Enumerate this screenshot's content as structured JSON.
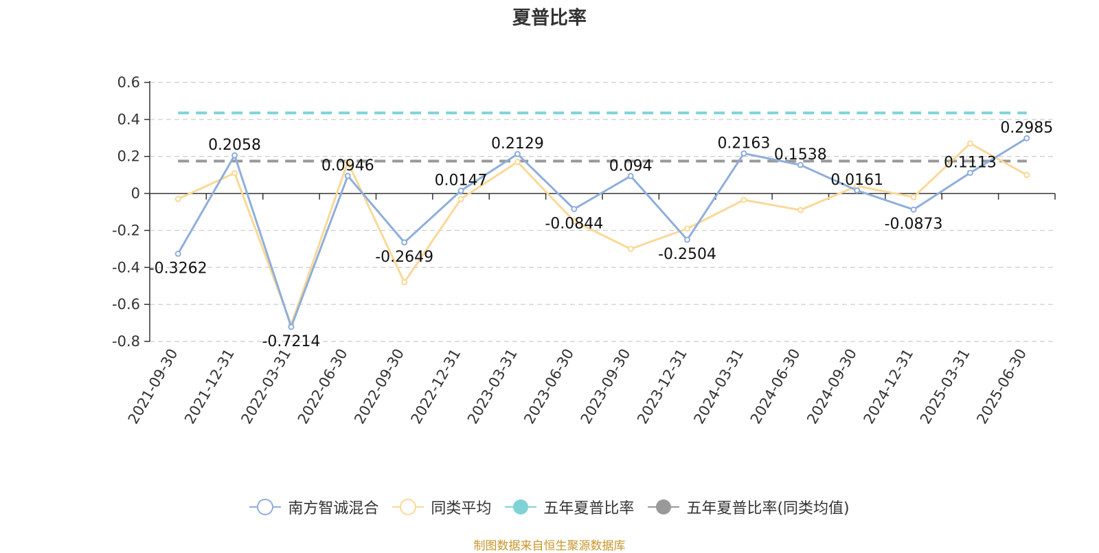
{
  "chart_data": {
    "type": "line",
    "title": "夏普比率",
    "source": "制图数据来自恒生聚源数据库",
    "categories": [
      "2021-09-30",
      "2021-12-31",
      "2022-03-31",
      "2022-06-30",
      "2022-09-30",
      "2022-12-31",
      "2023-03-31",
      "2023-06-30",
      "2023-09-30",
      "2023-12-31",
      "2024-03-31",
      "2024-06-30",
      "2024-09-30",
      "2024-12-31",
      "2025-03-31",
      "2025-06-30"
    ],
    "ylim": [
      -0.8,
      0.6
    ],
    "yticks": [
      "0.6",
      "0.4",
      "0.2",
      "0",
      "-0.2",
      "-0.4",
      "-0.6",
      "-0.8"
    ],
    "grid": true,
    "legend_position": "bottom",
    "series": [
      {
        "name": "南方智诚混合",
        "color": "#8eaedb",
        "values": [
          -0.3262,
          0.2058,
          -0.7214,
          0.0946,
          -0.2649,
          0.0147,
          0.2129,
          -0.0844,
          0.094,
          -0.2504,
          0.2163,
          0.1538,
          0.0161,
          -0.0873,
          0.1113,
          0.2985
        ],
        "labels": [
          "-0.3262",
          "0.2058",
          "-0.7214",
          "0.0946",
          "-0.2649",
          "0.0147",
          "0.2129",
          "-0.0844",
          "0.094",
          "-0.2504",
          "0.2163",
          "0.1538",
          "0.0161",
          "-0.0873",
          "0.1113",
          "0.2985"
        ]
      },
      {
        "name": "同类平均",
        "color": "#fad897",
        "values": [
          -0.03,
          0.11,
          -0.71,
          0.17,
          -0.48,
          -0.03,
          0.17,
          -0.15,
          -0.3,
          -0.19,
          -0.035,
          -0.09,
          0.04,
          -0.02,
          0.27,
          0.1
        ]
      },
      {
        "name": "五年夏普比率",
        "color": "#7fd3d6",
        "value": 0.435
      },
      {
        "name": "五年夏普比率(同类均值)",
        "color": "#999999",
        "value": 0.175
      }
    ]
  }
}
